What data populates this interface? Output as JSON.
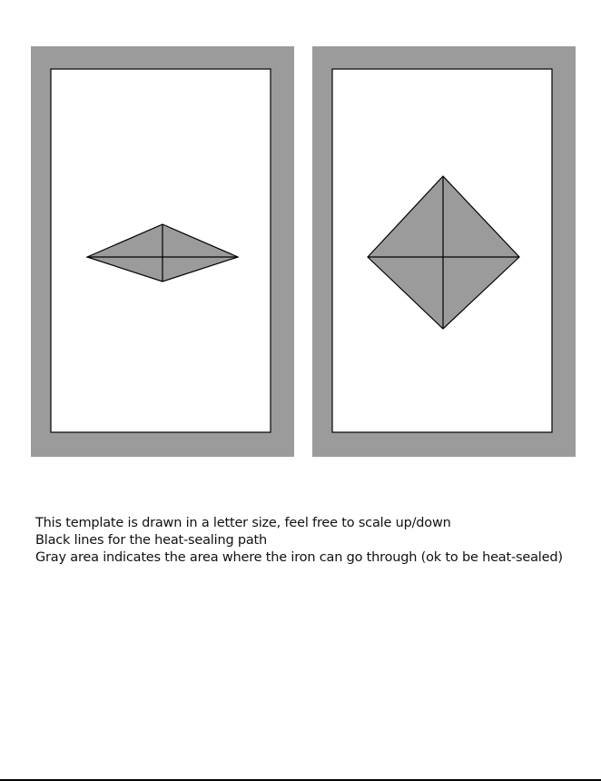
{
  "colors": {
    "seal_area_gray": "#9b9b9b",
    "path_line": "#000000",
    "background": "#ffffff"
  },
  "templates": [
    {
      "id": "left",
      "shape": "flat-rhombus"
    },
    {
      "id": "right",
      "shape": "square-diamond"
    }
  ],
  "notes": [
    "This template is drawn in a letter size, feel free to scale up/down",
    "Black lines for the heat-sealing path",
    "Gray area indicates the area where the iron can go through (ok to be heat-sealed)"
  ]
}
